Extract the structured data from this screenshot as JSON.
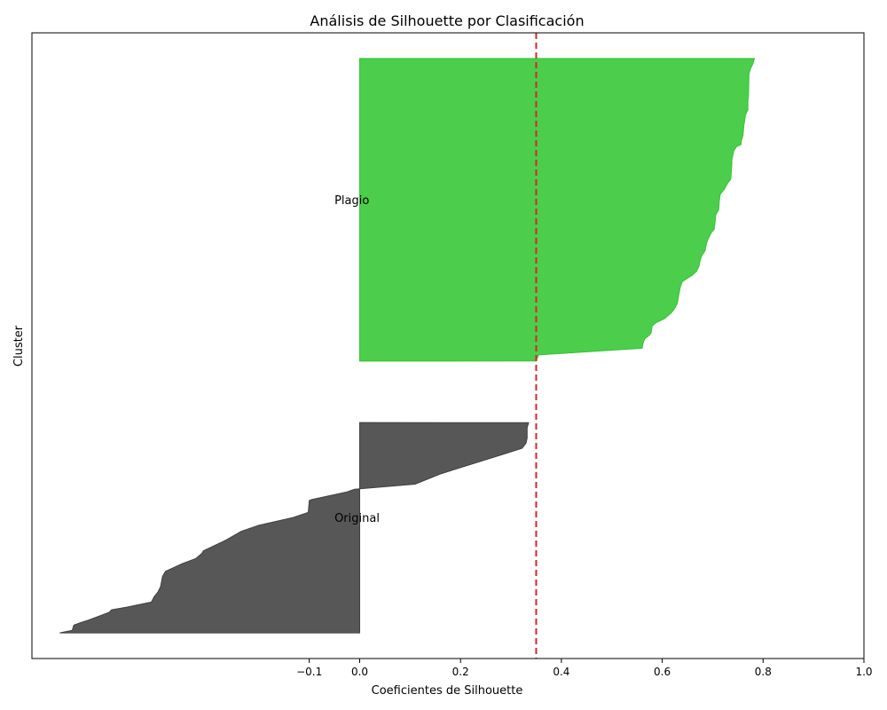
{
  "chart_data": {
    "type": "area",
    "title": "Análisis de Silhouette por Clasificación",
    "xlabel": "Coeficientes de Silhouette",
    "ylabel": "Cluster",
    "xlim": [
      -0.65,
      1.0
    ],
    "ylim": [
      0,
      122
    ],
    "x_ticks": [
      -0.1,
      0.0,
      0.2,
      0.4,
      0.6,
      0.8,
      1.0
    ],
    "x_tick_labels": [
      "−0.1",
      "0.0",
      "0.2",
      "0.4",
      "0.6",
      "0.8",
      "1.0"
    ],
    "grid": false,
    "reference_line": {
      "x": 0.35,
      "color": "#d62728",
      "style": "dashed"
    },
    "series": [
      {
        "name": "Original",
        "color": "#404040",
        "label_y": 27.5,
        "y_range": [
          5,
          46
        ],
        "profile": [
          [
            46,
            0.335
          ],
          [
            45,
            0.332
          ],
          [
            43,
            0.332
          ],
          [
            42,
            0.33
          ],
          [
            41,
            0.322
          ],
          [
            40,
            0.29
          ],
          [
            36,
            0.16
          ],
          [
            34,
            0.11
          ],
          [
            33,
            -0.01
          ],
          [
            32.5,
            -0.025
          ],
          [
            31,
            -0.095
          ],
          [
            30.8,
            -0.1
          ],
          [
            28.5,
            -0.102
          ],
          [
            27.5,
            -0.132
          ],
          [
            26,
            -0.2
          ],
          [
            24.8,
            -0.235
          ],
          [
            23,
            -0.267
          ],
          [
            21,
            -0.31
          ],
          [
            20.5,
            -0.313
          ],
          [
            19.5,
            -0.325
          ],
          [
            18.5,
            -0.352
          ],
          [
            17,
            -0.385
          ],
          [
            16,
            -0.391
          ],
          [
            14,
            -0.395
          ],
          [
            13,
            -0.4
          ],
          [
            12,
            -0.408
          ],
          [
            11,
            -0.413
          ],
          [
            10,
            -0.463
          ],
          [
            9.5,
            -0.492
          ],
          [
            9,
            -0.497
          ],
          [
            7.5,
            -0.538
          ],
          [
            7,
            -0.553
          ],
          [
            6.5,
            -0.567
          ],
          [
            5.5,
            -0.57
          ],
          [
            5,
            -0.595
          ]
        ]
      },
      {
        "name": "Plagio",
        "color": "#33c633",
        "label_y": 89.5,
        "y_range": [
          58,
          117
        ],
        "profile": [
          [
            117,
            0.783
          ],
          [
            116,
            0.78
          ],
          [
            115,
            0.775
          ],
          [
            114,
            0.772
          ],
          [
            109.5,
            0.771
          ],
          [
            109,
            0.77
          ],
          [
            107,
            0.77
          ],
          [
            106,
            0.765
          ],
          [
            104,
            0.762
          ],
          [
            102,
            0.76
          ],
          [
            101,
            0.757
          ],
          [
            100.2,
            0.756
          ],
          [
            99.8,
            0.747
          ],
          [
            99,
            0.742
          ],
          [
            97.2,
            0.738
          ],
          [
            96.5,
            0.738
          ],
          [
            95,
            0.737
          ],
          [
            93.5,
            0.736
          ],
          [
            92.7,
            0.73
          ],
          [
            91.5,
            0.723
          ],
          [
            90.5,
            0.715
          ],
          [
            89,
            0.713
          ],
          [
            87.5,
            0.712
          ],
          [
            86.5,
            0.706
          ],
          [
            85.3,
            0.705
          ],
          [
            83.7,
            0.703
          ],
          [
            83,
            0.697
          ],
          [
            82,
            0.692
          ],
          [
            81,
            0.688
          ],
          [
            79.5,
            0.685
          ],
          [
            78.5,
            0.678
          ],
          [
            77.5,
            0.675
          ],
          [
            76.5,
            0.673
          ],
          [
            75.5,
            0.668
          ],
          [
            74.8,
            0.66
          ],
          [
            73.5,
            0.64
          ],
          [
            72.5,
            0.636
          ],
          [
            71.5,
            0.634
          ],
          [
            70.5,
            0.632
          ],
          [
            69.3,
            0.63
          ],
          [
            68.5,
            0.626
          ],
          [
            67.5,
            0.619
          ],
          [
            66.3,
            0.605
          ],
          [
            65.5,
            0.588
          ],
          [
            64.8,
            0.58
          ],
          [
            64.2,
            0.579
          ],
          [
            63.5,
            0.578
          ],
          [
            63,
            0.574
          ],
          [
            62.3,
            0.565
          ],
          [
            61.5,
            0.562
          ],
          [
            60.5,
            0.56
          ],
          [
            59.2,
            0.355
          ],
          [
            58,
            0.35
          ]
        ]
      }
    ]
  }
}
